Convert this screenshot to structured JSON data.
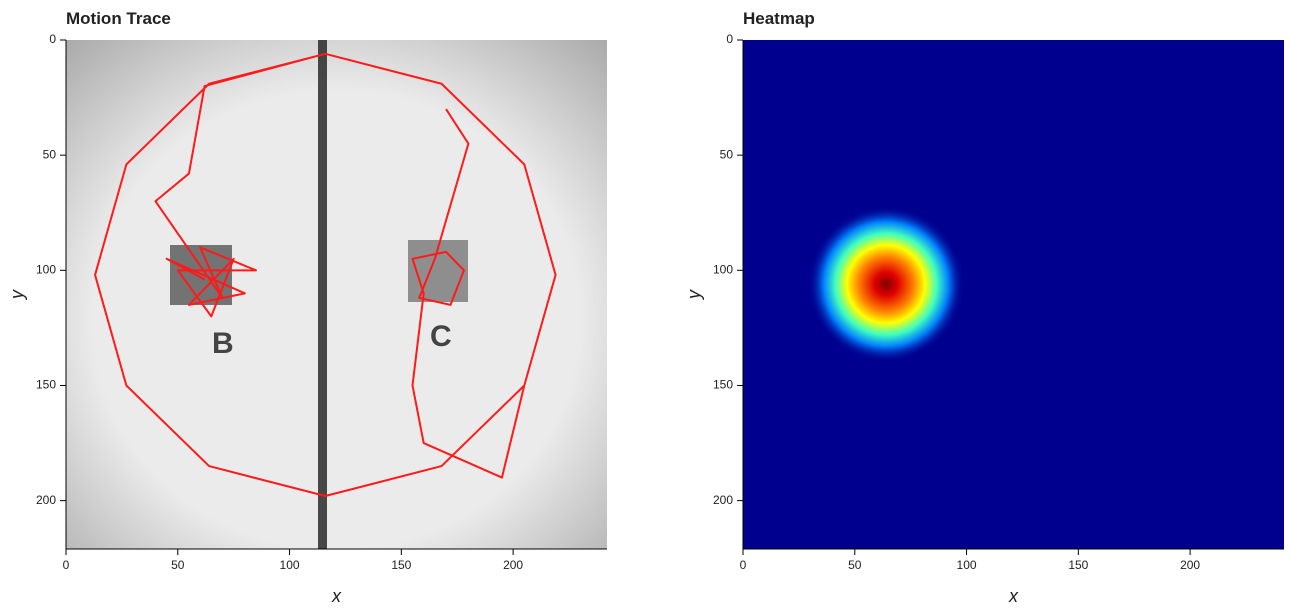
{
  "chart_data": [
    {
      "type": "line",
      "title": "Motion Trace",
      "xlabel": "x",
      "ylabel": "y",
      "color": "#ff1a1a",
      "xlim": [
        0,
        242
      ],
      "ylim": [
        221,
        0
      ],
      "xticks": [
        0,
        50,
        100,
        150,
        200
      ],
      "yticks": [
        0,
        50,
        100,
        150,
        200
      ],
      "x": [
        62,
        45,
        80,
        55,
        75,
        65,
        50,
        85,
        60,
        70,
        40,
        55,
        62,
        116,
        168,
        205,
        219,
        205,
        168,
        116,
        64,
        27,
        13,
        27,
        64,
        116,
        168,
        205,
        219,
        205,
        195,
        160,
        155,
        160,
        155,
        170,
        178,
        172,
        158,
        165,
        180,
        170
      ],
      "y": [
        104,
        95,
        110,
        115,
        95,
        120,
        100,
        100,
        90,
        112,
        70,
        58,
        20,
        6,
        19,
        54,
        102,
        150,
        185,
        198,
        185,
        150,
        102,
        54,
        19,
        6,
        19,
        54,
        102,
        150,
        190,
        175,
        150,
        110,
        95,
        92,
        100,
        115,
        112,
        95,
        45,
        30
      ]
    },
    {
      "type": "heatmap",
      "title": "Heatmap",
      "xlabel": "x",
      "ylabel": "y",
      "xlim": [
        0,
        242
      ],
      "ylim": [
        221,
        0
      ],
      "xticks": [
        0,
        50,
        100,
        150,
        200
      ],
      "yticks": [
        0,
        50,
        100,
        150,
        200
      ],
      "x": [
        64
      ],
      "y": [
        106
      ]
    }
  ]
}
